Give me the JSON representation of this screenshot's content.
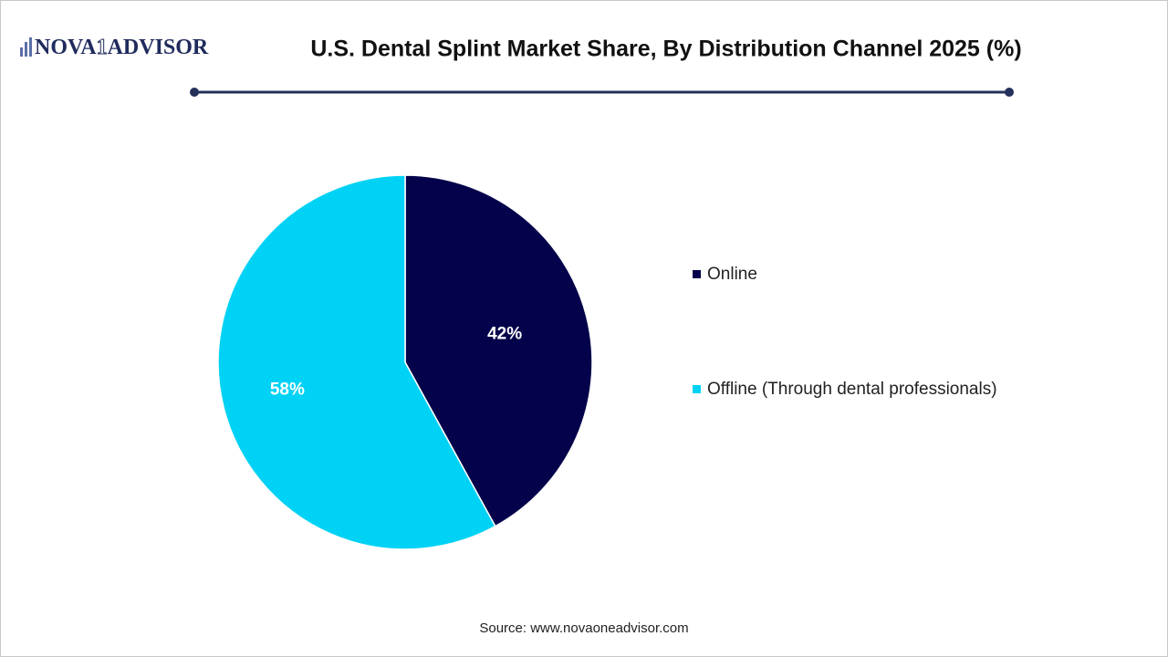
{
  "logo": {
    "left": "NOVA",
    "mark": "1",
    "right": "ADVISOR"
  },
  "chart_data": {
    "type": "pie",
    "title": "U.S. Dental Splint Market Share, By Distribution Channel 2025 (%)",
    "categories": [
      "Online",
      "Offline (Through dental professionals)"
    ],
    "values": [
      42,
      58
    ],
    "value_labels": [
      "42%",
      "58%"
    ],
    "colors": [
      "#03024a",
      "#00d2f5"
    ],
    "source": "Source: www.novaoneadvisor.com"
  }
}
